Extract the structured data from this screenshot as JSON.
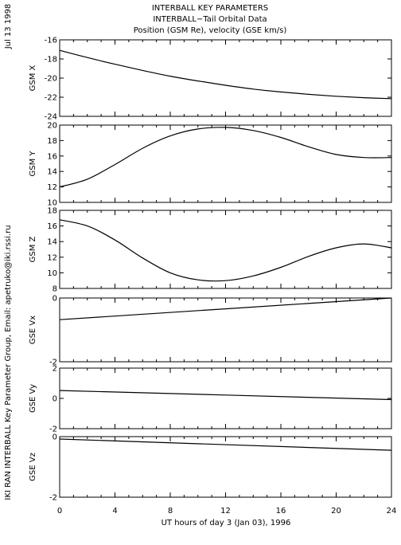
{
  "header": {
    "title1": "INTERBALL KEY PARAMETERS",
    "title2": "INTERBALL−Tail Orbital Data",
    "title3": "Position (GSM Re), velocity (GSE km/s)",
    "date_label": "Jul 13 1998",
    "credit": "IKI RAN INTERBALL Key Parameter Group, Email: apetruko@iki.rssi.ru"
  },
  "chart_data": [
    {
      "type": "line",
      "ylabel": "GSM X",
      "ylim": [
        -24,
        -16
      ],
      "yticks": [
        "-16",
        "-18",
        "-20",
        "-22",
        "-24"
      ],
      "x": [
        0,
        2,
        4,
        6,
        8,
        10,
        12,
        14,
        16,
        18,
        20,
        22,
        24
      ],
      "values": [
        -17.1,
        -17.85,
        -18.55,
        -19.2,
        -19.8,
        -20.3,
        -20.75,
        -21.15,
        -21.45,
        -21.7,
        -21.9,
        -22.05,
        -22.15
      ]
    },
    {
      "type": "line",
      "ylabel": "GSM Y",
      "ylim": [
        10,
        20
      ],
      "yticks": [
        "20",
        "18",
        "16",
        "14",
        "12",
        "10"
      ],
      "x": [
        0,
        2,
        4,
        6,
        8,
        10,
        12,
        14,
        16,
        18,
        20,
        22,
        24
      ],
      "values": [
        12.0,
        13.0,
        14.9,
        17.0,
        18.6,
        19.5,
        19.7,
        19.3,
        18.4,
        17.2,
        16.2,
        15.8,
        15.8
      ]
    },
    {
      "type": "line",
      "ylabel": "GSM Z",
      "ylim": [
        8,
        18
      ],
      "yticks": [
        "18",
        "16",
        "14",
        "12",
        "10",
        "8"
      ],
      "x": [
        0,
        2,
        4,
        6,
        8,
        10,
        12,
        14,
        16,
        18,
        20,
        22,
        24
      ],
      "values": [
        16.8,
        16.0,
        14.2,
        11.9,
        10.0,
        9.1,
        9.0,
        9.6,
        10.7,
        12.1,
        13.2,
        13.7,
        13.2
      ]
    },
    {
      "type": "line",
      "ylabel": "GSE Vx",
      "ylim": [
        -2,
        0
      ],
      "yticks": [
        "0",
        "-2"
      ],
      "x": [
        0,
        24
      ],
      "values": [
        -0.68,
        0.0
      ]
    },
    {
      "type": "line",
      "ylabel": "GSE Vy",
      "ylim": [
        -2,
        2
      ],
      "yticks": [
        "2",
        "0",
        "-2"
      ],
      "x": [
        0,
        24
      ],
      "values": [
        0.52,
        -0.08
      ]
    },
    {
      "type": "line",
      "ylabel": "GSE Vz",
      "ylim": [
        -2,
        0
      ],
      "yticks": [
        "0",
        "-2"
      ],
      "x": [
        0,
        24
      ],
      "values": [
        -0.08,
        -0.45
      ]
    }
  ],
  "x_axis": {
    "xlim": [
      0,
      24
    ],
    "ticks": [
      "0",
      "4",
      "8",
      "12",
      "16",
      "20",
      "24"
    ],
    "label": "UT hours of day   3 (Jan 03), 1996"
  }
}
